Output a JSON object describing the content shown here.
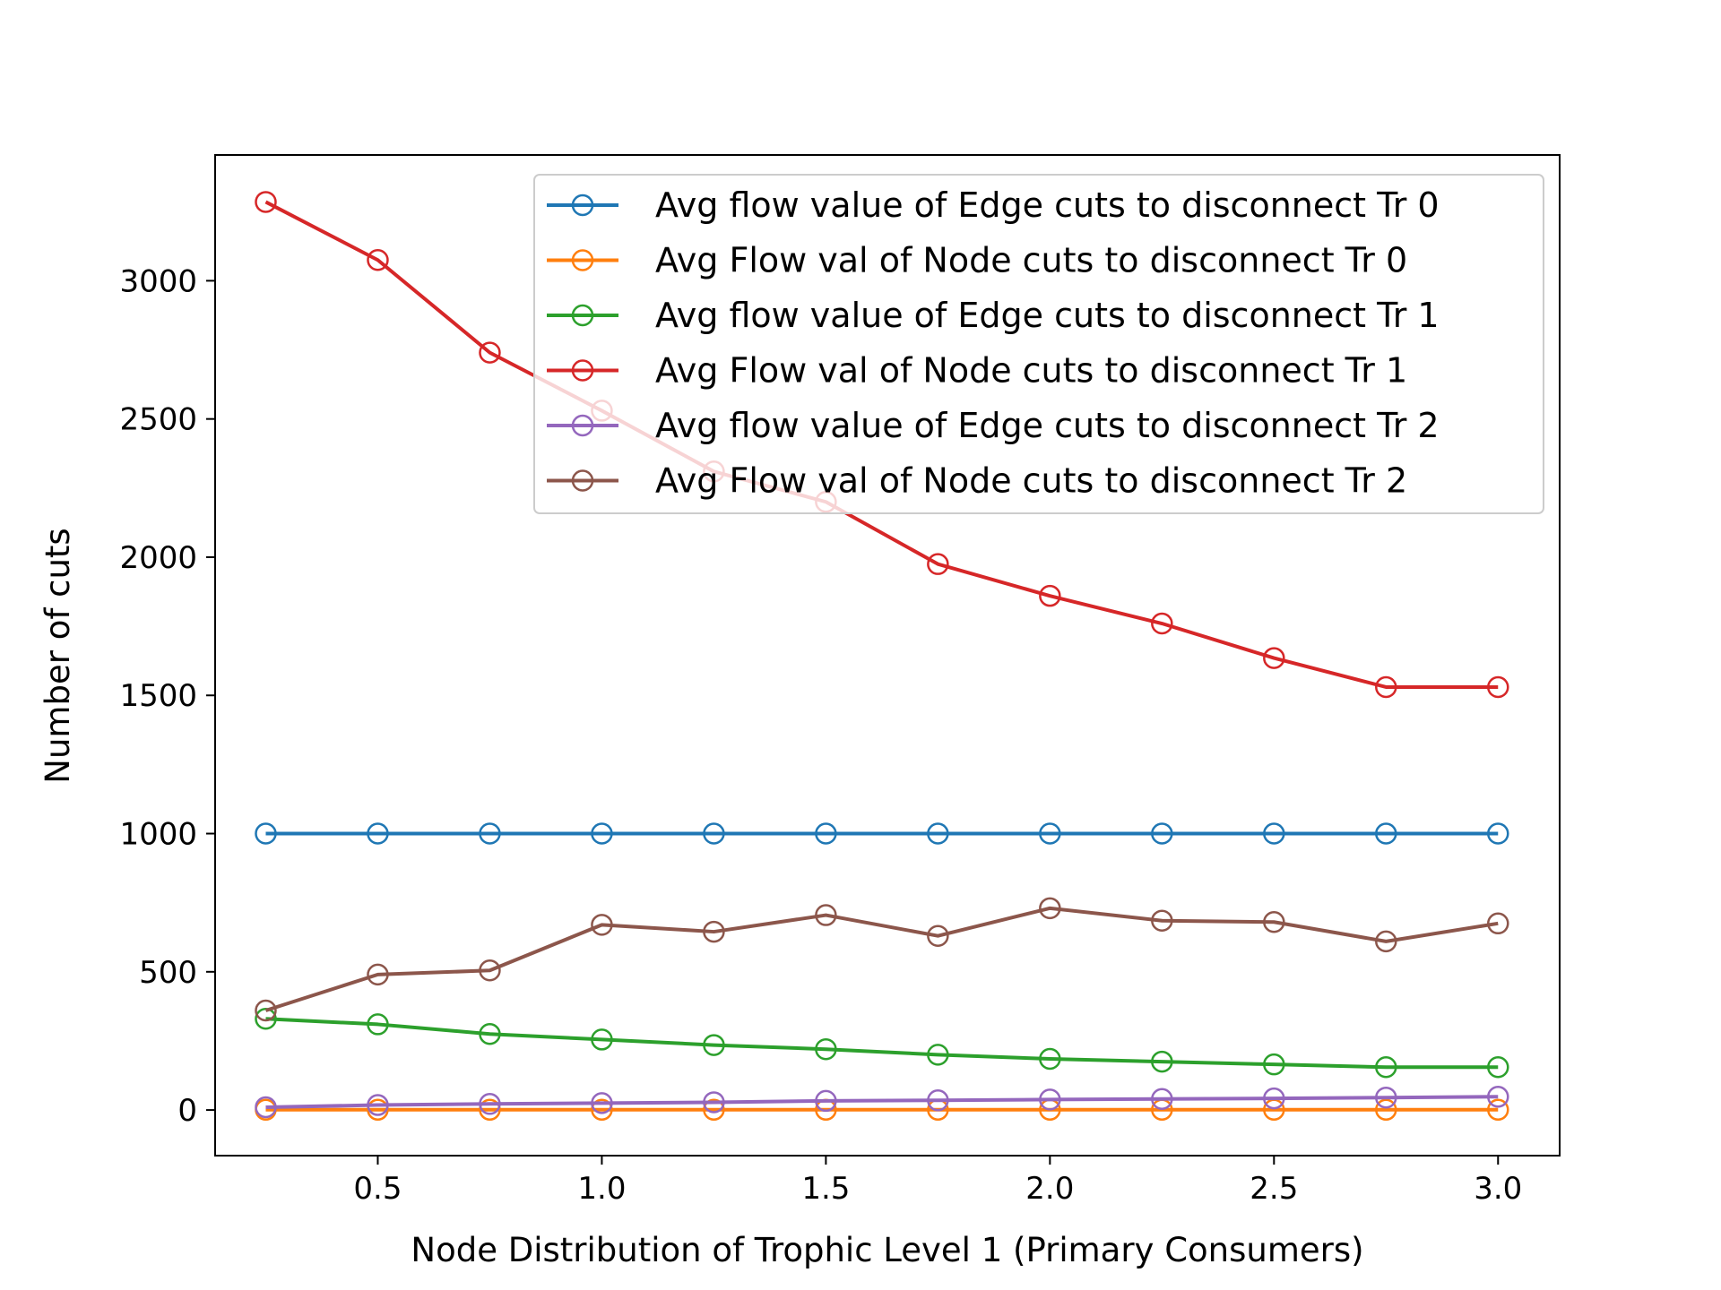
{
  "chart_data": {
    "type": "line",
    "title": "",
    "xlabel": "Node Distribution of Trophic Level 1 (Primary Consumers)",
    "ylabel": "Number of cuts",
    "xlim": [
      0.137,
      3.1375
    ],
    "ylim": [
      -165,
      3455
    ],
    "xticks": [
      0.5,
      1.0,
      1.5,
      2.0,
      2.5,
      3.0
    ],
    "xtick_labels": [
      "0.5",
      "1.0",
      "1.5",
      "2.0",
      "2.5",
      "3.0"
    ],
    "yticks": [
      0,
      500,
      1000,
      1500,
      2000,
      2500,
      3000
    ],
    "ytick_labels": [
      "0",
      "500",
      "1000",
      "1500",
      "2000",
      "2500",
      "3000"
    ],
    "grid": false,
    "legend_position": "top-right",
    "x": [
      0.25,
      0.5,
      0.75,
      1.0,
      1.25,
      1.5,
      1.75,
      2.0,
      2.25,
      2.5,
      2.75,
      3.0
    ],
    "series": [
      {
        "name": "Avg flow value of Edge cuts to disconnect Tr 0",
        "color": "#1f77b4",
        "values": [
          1000,
          1000,
          1000,
          1000,
          1000,
          1000,
          1000,
          1000,
          1000,
          1000,
          1000,
          1000
        ]
      },
      {
        "name": "Avg Flow val of Node cuts to disconnect Tr 0",
        "color": "#ff7f0e",
        "values": [
          1,
          1,
          1,
          1,
          1,
          1,
          1,
          1,
          1,
          1,
          1,
          1
        ]
      },
      {
        "name": "Avg flow value of Edge cuts to disconnect Tr 1",
        "color": "#2ca02c",
        "values": [
          330,
          310,
          275,
          255,
          235,
          220,
          200,
          185,
          175,
          165,
          155,
          155
        ]
      },
      {
        "name": "Avg Flow val of Node cuts to disconnect Tr 1",
        "color": "#d62728",
        "values": [
          3285,
          3075,
          2740,
          2530,
          2310,
          2200,
          1975,
          1860,
          1760,
          1635,
          1530,
          1530
        ]
      },
      {
        "name": "Avg flow value of Edge cuts to disconnect Tr 2",
        "color": "#9467bd",
        "values": [
          10,
          18,
          22,
          25,
          28,
          33,
          35,
          38,
          40,
          42,
          45,
          48
        ]
      },
      {
        "name": "Avg Flow val of Node cuts to disconnect Tr 2",
        "color": "#8c564b",
        "values": [
          360,
          490,
          505,
          670,
          645,
          705,
          630,
          730,
          685,
          680,
          610,
          675
        ]
      }
    ]
  }
}
